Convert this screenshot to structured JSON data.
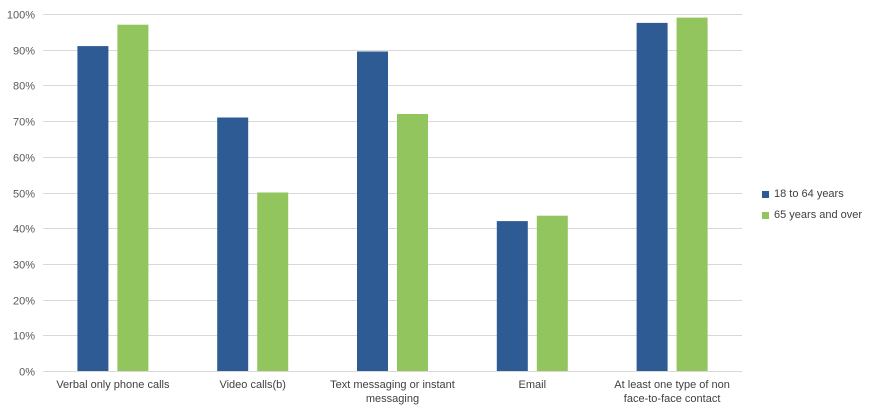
{
  "chart_data": {
    "type": "bar",
    "title": "",
    "xlabel": "",
    "ylabel": "",
    "categories": [
      [
        "Verbal only phone calls"
      ],
      [
        "Video calls(b)"
      ],
      [
        "Text messaging or instant",
        "messaging"
      ],
      [
        "Email"
      ],
      [
        "At least one type of non",
        "face-to-face contact"
      ]
    ],
    "series": [
      {
        "name": "18 to 64 years",
        "color": "#2E5B94",
        "values": [
          91,
          71,
          89.5,
          42,
          97.5
        ]
      },
      {
        "name": "65 years and over",
        "color": "#92C55E",
        "values": [
          97,
          50,
          72,
          43.5,
          99
        ]
      }
    ],
    "ylim": [
      0,
      100
    ],
    "yticks": [
      0,
      10,
      20,
      30,
      40,
      50,
      60,
      70,
      80,
      90,
      100
    ],
    "ytick_labels": [
      "0%",
      "10%",
      "20%",
      "30%",
      "40%",
      "50%",
      "60%",
      "70%",
      "80%",
      "90%",
      "100%"
    ],
    "grid": true,
    "gridline_color": "#D9D9D9",
    "legend_position": "right"
  }
}
